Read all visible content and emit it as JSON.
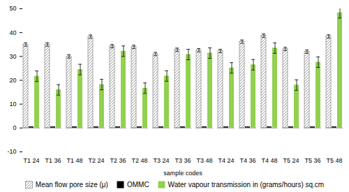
{
  "chart_data": {
    "type": "bar",
    "x_label": "sample codes",
    "categories": [
      "T1 24",
      "T1 36",
      "T1 48",
      "T2 24",
      "T2 36",
      "T2 48",
      "T3 24",
      "T3 36",
      "T3 48",
      "T4 24",
      "T4 36",
      "T4 48",
      "T5 24",
      "T5 36",
      "T5 48"
    ],
    "series": [
      {
        "name": "Mean flow pore size (μ)",
        "color": "#808080",
        "marker": "hatch",
        "values": [
          35,
          35,
          30,
          38.3,
          34.3,
          34,
          31,
          32.8,
          32.6,
          32.3,
          36.2,
          38.7,
          33.1,
          32,
          38.4
        ],
        "errors": [
          0.7,
          0.7,
          0.7,
          0.7,
          0.7,
          0.7,
          0.7,
          0.7,
          0.7,
          0.7,
          0.7,
          0.7,
          0.7,
          0.7,
          0.7
        ]
      },
      {
        "name": "OMMC",
        "color": "#000000",
        "values": [
          0.5,
          0.5,
          0.5,
          0.5,
          0.5,
          0.5,
          0.5,
          0.5,
          0.5,
          0.5,
          0.5,
          0.5,
          0.5,
          0.5,
          0.5
        ]
      },
      {
        "name": "Water vapour transmission in (grams/hours) sq.cm",
        "color": "#92d050",
        "values": [
          21.7,
          16,
          24.5,
          18.2,
          32.2,
          16.7,
          21.8,
          30.8,
          31.4,
          25.2,
          26.5,
          33.5,
          18,
          27.6,
          48.3
        ],
        "errors": [
          2.2,
          2.2,
          2.2,
          2.2,
          2.2,
          2.2,
          2.2,
          2.2,
          2.2,
          2.2,
          2.2,
          2.2,
          2.2,
          2.2,
          2.2
        ]
      }
    ],
    "ylim": [
      -10,
      50
    ],
    "yticks": [
      -10,
      0,
      10,
      20,
      30,
      40,
      50
    ],
    "grid": false,
    "legend": "bottom"
  }
}
